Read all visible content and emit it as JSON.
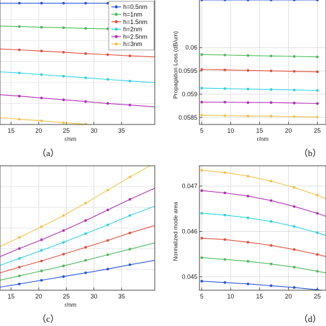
{
  "chart_data": [
    {
      "panel_label": "（a）",
      "type": "line",
      "xlabel": "r/nm",
      "ylabel": "",
      "xlim": [
        13,
        41
      ],
      "ylim": [
        0.7,
        6.2
      ],
      "x_ticks": [
        "15",
        "20",
        "25",
        "30",
        "35"
      ],
      "x_tick_values": [
        15,
        20,
        25,
        30,
        35
      ],
      "y_ticks": [],
      "y_tick_values": [],
      "grid": true,
      "legend_position": "top-right",
      "series": [
        {
          "name": "h=0.5nm",
          "color": "#2a55d8",
          "x": [
            13,
            16.5,
            20.5,
            24.5,
            28.5,
            32.5,
            36.5,
            41
          ],
          "y": [
            6.0,
            6.0,
            6.0,
            6.0,
            6.0,
            6.0,
            6.0,
            6.0
          ]
        },
        {
          "name": "h=1nm",
          "color": "#4cbb5a",
          "x": [
            13,
            16.5,
            20.5,
            24.5,
            28.5,
            32.5,
            36.5,
            41
          ],
          "y": [
            5.0,
            4.98,
            4.95,
            4.93,
            4.9,
            4.88,
            4.86,
            4.83
          ]
        },
        {
          "name": "h=1.5nm",
          "color": "#e0503c",
          "x": [
            13,
            16.5,
            20.5,
            24.5,
            28.5,
            32.5,
            36.5,
            41
          ],
          "y": [
            4.0,
            3.96,
            3.91,
            3.86,
            3.8,
            3.75,
            3.7,
            3.65
          ]
        },
        {
          "name": "h=2nm",
          "color": "#2fd4de",
          "x": [
            13,
            16.5,
            20.5,
            24.5,
            28.5,
            32.5,
            36.5,
            41
          ],
          "y": [
            3.0,
            2.95,
            2.88,
            2.81,
            2.74,
            2.67,
            2.6,
            2.53
          ]
        },
        {
          "name": "h=2.5nm",
          "color": "#b22fb5",
          "x": [
            13,
            16.5,
            20.5,
            24.5,
            28.5,
            32.5,
            36.5,
            41
          ],
          "y": [
            2.0,
            1.94,
            1.86,
            1.78,
            1.7,
            1.62,
            1.55,
            1.47
          ]
        },
        {
          "name": "h=3nm",
          "color": "#f4c24a",
          "x": [
            13,
            16.5,
            20.5,
            24.5,
            28.5,
            32.5,
            36.5,
            41
          ],
          "y": [
            1.0,
            0.93,
            0.86,
            0.78,
            0.71,
            0.64,
            0.57,
            0.5
          ]
        }
      ]
    },
    {
      "panel_label": "（b）",
      "type": "line",
      "xlabel": "r/nm",
      "ylabel": "Propagation Loss (dB/um)",
      "xlim": [
        4.6,
        26.5
      ],
      "ylim": [
        0.05835,
        0.06105
      ],
      "x_ticks": [
        "5",
        "10",
        "15",
        "20",
        "25"
      ],
      "x_tick_values": [
        5,
        10,
        15,
        20,
        25
      ],
      "y_ticks": [
        "0.0585",
        "0.059",
        "0.0595",
        "0.06"
      ],
      "y_tick_values": [
        0.0585,
        0.059,
        0.0595,
        0.06
      ],
      "grid": true,
      "series": [
        {
          "name": "h=0.5nm",
          "color": "#2a55d8",
          "x": [
            5,
            9,
            13,
            17,
            21,
            25
          ],
          "y": [
            0.06102,
            0.06102,
            0.06102,
            0.06102,
            0.06102,
            0.06102
          ]
        },
        {
          "name": "h=1nm",
          "color": "#4cbb5a",
          "x": [
            5,
            9,
            13,
            17,
            21,
            25
          ],
          "y": [
            0.05985,
            0.05984,
            0.05983,
            0.05982,
            0.05981,
            0.0598
          ]
        },
        {
          "name": "h=1.5nm",
          "color": "#e0503c",
          "x": [
            5,
            9,
            13,
            17,
            21,
            25
          ],
          "y": [
            0.05953,
            0.05952,
            0.05951,
            0.0595,
            0.05949,
            0.05948
          ]
        },
        {
          "name": "h=2nm",
          "color": "#2fd4de",
          "x": [
            5,
            9,
            13,
            17,
            21,
            25
          ],
          "y": [
            0.05913,
            0.05912,
            0.05911,
            0.0591,
            0.05909,
            0.05908
          ]
        },
        {
          "name": "h=2.5nm",
          "color": "#b22fb5",
          "x": [
            5,
            9,
            13,
            17,
            21,
            25
          ],
          "y": [
            0.05883,
            0.05883,
            0.05882,
            0.05882,
            0.05881,
            0.0588
          ]
        },
        {
          "name": "h=3nm",
          "color": "#f4c24a",
          "x": [
            5,
            9,
            13,
            17,
            21,
            25
          ],
          "y": [
            0.05855,
            0.05854,
            0.05853,
            0.05853,
            0.05852,
            0.05851
          ]
        }
      ]
    },
    {
      "panel_label": "（c）",
      "type": "line",
      "xlabel": "r/nm",
      "ylabel": "",
      "xlim": [
        13,
        41
      ],
      "ylim": [
        0,
        10
      ],
      "x_ticks": [
        "15",
        "20",
        "25",
        "30",
        "35"
      ],
      "x_tick_values": [
        15,
        20,
        25,
        30,
        35
      ],
      "y_ticks": [],
      "y_tick_values": [],
      "grid": true,
      "series": [
        {
          "name": "h=0.5nm",
          "color": "#2a55d8",
          "x": [
            13,
            16.5,
            20.5,
            24.5,
            28.5,
            32.5,
            36.5,
            41
          ],
          "y": [
            0.25,
            0.5,
            0.8,
            1.1,
            1.4,
            1.7,
            2.05,
            2.4
          ]
        },
        {
          "name": "h=1nm",
          "color": "#4cbb5a",
          "x": [
            13,
            16.5,
            20.5,
            24.5,
            28.5,
            32.5,
            36.5,
            41
          ],
          "y": [
            0.8,
            1.15,
            1.55,
            1.95,
            2.4,
            2.85,
            3.3,
            3.8
          ]
        },
        {
          "name": "h=1.5nm",
          "color": "#e0503c",
          "x": [
            13,
            16.5,
            20.5,
            24.5,
            28.5,
            32.5,
            36.5,
            41
          ],
          "y": [
            1.4,
            1.85,
            2.35,
            2.9,
            3.45,
            4.0,
            4.6,
            5.2
          ]
        },
        {
          "name": "h=2nm",
          "color": "#2fd4de",
          "x": [
            13,
            16.5,
            20.5,
            24.5,
            28.5,
            32.5,
            36.5,
            41
          ],
          "y": [
            2.0,
            2.55,
            3.2,
            3.85,
            4.55,
            5.25,
            6.0,
            6.75
          ]
        },
        {
          "name": "h=2.5nm",
          "color": "#b22fb5",
          "x": [
            13,
            16.5,
            20.5,
            24.5,
            28.5,
            32.5,
            36.5,
            41
          ],
          "y": [
            2.7,
            3.35,
            4.05,
            4.8,
            5.6,
            6.45,
            7.3,
            8.2
          ]
        },
        {
          "name": "h=3nm",
          "color": "#f4c24a",
          "x": [
            13,
            16.5,
            20.5,
            24.5,
            28.5,
            32.5,
            36.5,
            41
          ],
          "y": [
            3.5,
            4.25,
            5.1,
            6.0,
            7.0,
            8.05,
            9.1,
            10.2
          ]
        }
      ]
    },
    {
      "panel_label": "（d）",
      "type": "line",
      "xlabel": "",
      "ylabel": "Normalized mode area",
      "xlim": [
        4.6,
        26.5
      ],
      "ylim": [
        0.0447,
        0.04745
      ],
      "x_ticks": [
        "5",
        "10",
        "15",
        "20",
        "25"
      ],
      "x_tick_values": [
        5,
        10,
        15,
        20,
        25
      ],
      "y_ticks": [
        "0.045",
        "0.046",
        "0.047"
      ],
      "y_tick_values": [
        0.045,
        0.046,
        0.047
      ],
      "grid": true,
      "series": [
        {
          "name": "h=0.5nm",
          "color": "#2a55d8",
          "x": [
            5,
            9,
            13,
            17,
            21,
            25,
            27
          ],
          "y": [
            0.0449,
            0.04487,
            0.04484,
            0.0448,
            0.04476,
            0.04471,
            0.04468
          ]
        },
        {
          "name": "h=1nm",
          "color": "#4cbb5a",
          "x": [
            5,
            9,
            13,
            17,
            21,
            25,
            27
          ],
          "y": [
            0.04542,
            0.04538,
            0.04534,
            0.04528,
            0.04521,
            0.04512,
            0.04507
          ]
        },
        {
          "name": "h=1.5nm",
          "color": "#e0503c",
          "x": [
            5,
            9,
            13,
            17,
            21,
            25,
            27
          ],
          "y": [
            0.04585,
            0.04582,
            0.04576,
            0.04569,
            0.0456,
            0.04549,
            0.04543
          ]
        },
        {
          "name": "h=2nm",
          "color": "#2fd4de",
          "x": [
            5,
            9,
            13,
            17,
            21,
            25,
            27
          ],
          "y": [
            0.0464,
            0.04636,
            0.0463,
            0.04622,
            0.04611,
            0.04597,
            0.04589
          ]
        },
        {
          "name": "h=2.5nm",
          "color": "#b22fb5",
          "x": [
            5,
            9,
            13,
            17,
            21,
            25,
            27
          ],
          "y": [
            0.0469,
            0.04685,
            0.04678,
            0.04668,
            0.04655,
            0.0464,
            0.04631
          ]
        },
        {
          "name": "h=3nm",
          "color": "#f4c24a",
          "x": [
            5,
            9,
            13,
            17,
            21,
            25,
            27
          ],
          "y": [
            0.04735,
            0.0473,
            0.04722,
            0.04711,
            0.04697,
            0.0468,
            0.04669
          ]
        }
      ]
    }
  ]
}
